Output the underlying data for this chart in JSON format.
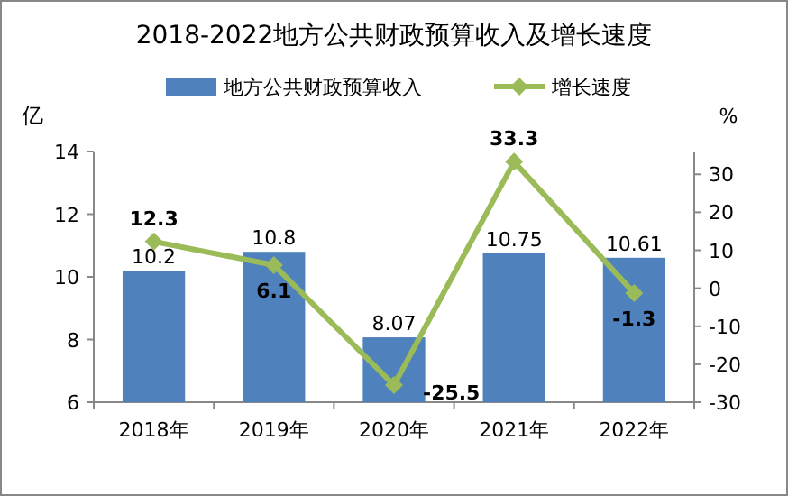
{
  "chart_data": {
    "type": "bar",
    "title": "2018-2022地方公共财政预算收入及增长速度",
    "ylabel": "亿",
    "y2label": "%",
    "categories": [
      "2018年",
      "2019年",
      "2020年",
      "2021年",
      "2022年"
    ],
    "series": [
      {
        "name": "地方公共财政预算收入",
        "color": "#4f81bd",
        "values": [
          10.2,
          10.8,
          8.07,
          10.75,
          10.61
        ]
      },
      {
        "name": "增长速度",
        "type": "line",
        "axis": "y2",
        "color": "#9bbb59",
        "marker": "diamond",
        "values": [
          12.3,
          6.1,
          -25.5,
          33.3,
          -1.3
        ]
      }
    ],
    "ylim": [
      6,
      14
    ],
    "yticks": [
      6,
      8,
      10,
      12,
      14
    ],
    "y2lim": [
      -30,
      36
    ],
    "y2ticks": [
      -30,
      -20,
      -10,
      0,
      10,
      20,
      30
    ],
    "data_labels": true,
    "legend": "top",
    "grid": false
  }
}
